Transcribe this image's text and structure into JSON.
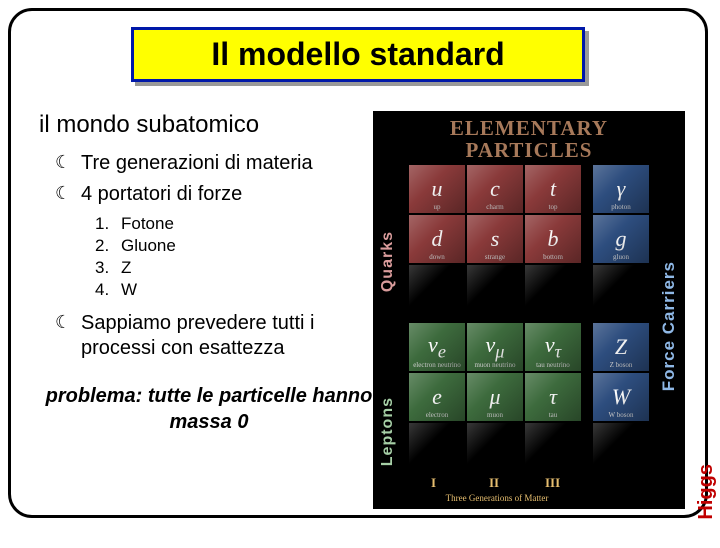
{
  "title": "Il modello standard",
  "subtitle": "il mondo subatomico",
  "bullets": [
    "Tre generazioni di materia",
    "4 portatori di forze"
  ],
  "force_carriers_list": [
    {
      "n": "1.",
      "label": "Fotone"
    },
    {
      "n": "2.",
      "label": "Gluone"
    },
    {
      "n": "3.",
      "label": "Z"
    },
    {
      "n": "4.",
      "label": "W"
    }
  ],
  "bullet3": "Sappiamo prevedere tutti i processi con esattezza",
  "problem": "problema: tutte le particelle hanno massa 0",
  "higgs": "Higgs",
  "figure": {
    "title_line1": "ELEMENTARY",
    "title_line2": "PARTICLES",
    "side_quarks": "Quarks",
    "side_leptons": "Leptons",
    "side_carriers": "Force Carriers",
    "gen_label": "Three Generations of Matter",
    "roman": [
      "I",
      "II",
      "III"
    ],
    "colors": {
      "quark": "#8a3a3a",
      "lepton": "#3d6b3d",
      "boson": "#2d4d7e",
      "black": "#000000"
    },
    "cells": {
      "q": [
        [
          {
            "s": "u",
            "n": "up"
          },
          {
            "s": "c",
            "n": "charm"
          },
          {
            "s": "t",
            "n": "top"
          }
        ],
        [
          {
            "s": "d",
            "n": "down"
          },
          {
            "s": "s",
            "n": "strange"
          },
          {
            "s": "b",
            "n": "bottom"
          }
        ],
        [
          {
            "s": "",
            "n": ""
          },
          {
            "s": "",
            "n": ""
          },
          {
            "s": "",
            "n": ""
          }
        ]
      ],
      "l": [
        [
          {
            "s": "ν<sub>e</sub>",
            "n": "electron neutrino"
          },
          {
            "s": "ν<sub>μ</sub>",
            "n": "muon neutrino"
          },
          {
            "s": "ν<sub>τ</sub>",
            "n": "tau neutrino"
          }
        ],
        [
          {
            "s": "e",
            "n": "electron"
          },
          {
            "s": "μ",
            "n": "muon"
          },
          {
            "s": "τ",
            "n": "tau"
          }
        ]
      ],
      "b": [
        {
          "s": "γ",
          "n": "photon"
        },
        {
          "s": "g",
          "n": "gluon"
        },
        {
          "s": "",
          "n": ""
        },
        {
          "s": "Z",
          "n": "Z boson"
        },
        {
          "s": "W",
          "n": "W boson"
        }
      ]
    }
  }
}
